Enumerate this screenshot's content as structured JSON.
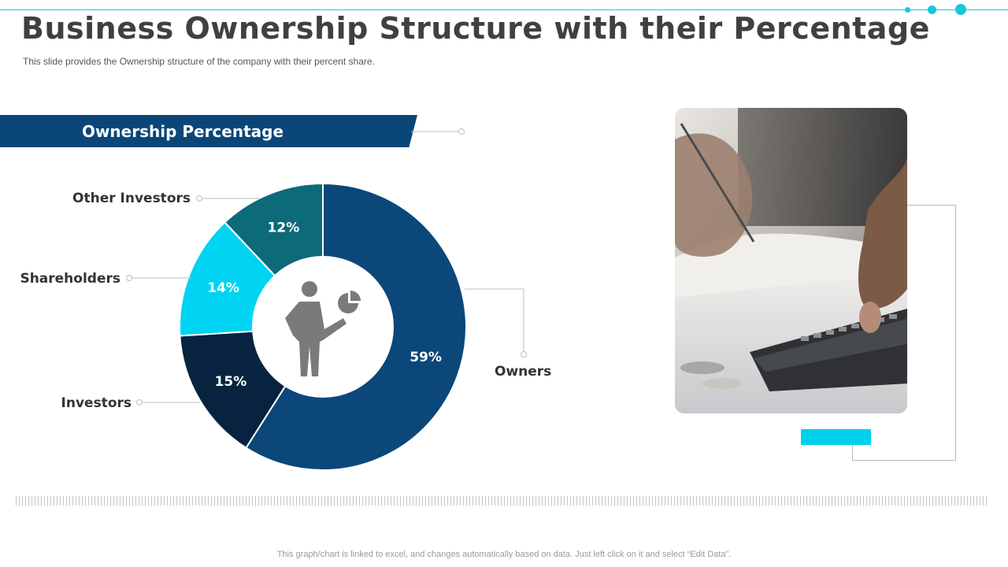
{
  "title": "Business Ownership Structure with their Percentage",
  "subtitle": "This slide provides  the Ownership  structure of the company with their percent share.",
  "banner": "Ownership Percentage",
  "footnote": "This graph/chart is linked to excel,  and changes automatically based on data.  Just left click on it and select “Edit Data”.",
  "colors": {
    "accent": "#19c6de",
    "banner": "#0a4778",
    "cyan_bar": "#00cfee"
  },
  "chart_data": {
    "type": "pie",
    "variant": "donut",
    "categories": [
      "Owners",
      "Investors",
      "Shareholders",
      "Other Investors"
    ],
    "values": [
      59,
      15,
      14,
      12
    ],
    "labels": [
      "59%",
      "15%",
      "14%",
      "12%"
    ],
    "colors": [
      "#0b4779",
      "#07233f",
      "#00d4f2",
      "#0d6a78"
    ],
    "center_icon": "businessman-with-pie-chart-icon",
    "title": "Ownership Percentage"
  },
  "photo": {
    "icon": "hand-on-calculator-photo"
  }
}
